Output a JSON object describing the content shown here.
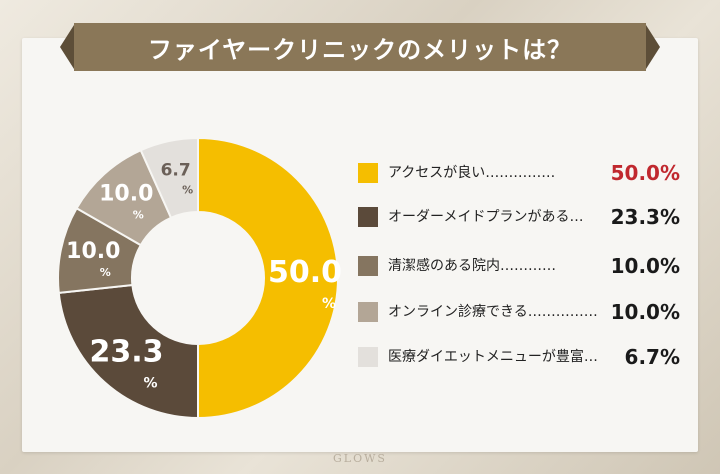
{
  "title": "ファイヤークリニックのメリットは？",
  "watermark": "GLOWS",
  "colors": {
    "banner": "#8a7758",
    "banner_dark": "#5d4e38",
    "highlight": "#c0282e"
  },
  "chart_data": {
    "type": "pie",
    "donut": true,
    "unit": "%",
    "categories": [
      "アクセスが良い",
      "オーダーメイドプランがある",
      "清潔感のある院内",
      "オンライン診療できる",
      "医療ダイエットメニューが豊富"
    ],
    "values": [
      50.0,
      23.3,
      10.0,
      10.0,
      6.7
    ],
    "slice_labels": [
      "50.0",
      "23.3",
      "10.0",
      "10.0",
      "6.7"
    ],
    "colors": [
      "#f5be00",
      "#5b4a3a",
      "#857560",
      "#b3a696",
      "#e3e0dc"
    ],
    "label_colors": [
      "#ffffff",
      "#ffffff",
      "#ffffff",
      "#ffffff",
      "#6b6058"
    ]
  },
  "legend": [
    {
      "label": "アクセスが良い……………",
      "value": "50.0%",
      "highlight": true
    },
    {
      "label": "オーダーメイドプランがある…",
      "value": "23.3%",
      "highlight": false
    },
    {
      "label": "清潔感のある院内…………",
      "value": "10.0%",
      "highlight": false
    },
    {
      "label": "オンライン診療できる……………",
      "value": "10.0%",
      "highlight": false
    },
    {
      "label": "医療ダイエットメニューが豊富…",
      "value": "6.7%",
      "highlight": false
    }
  ]
}
